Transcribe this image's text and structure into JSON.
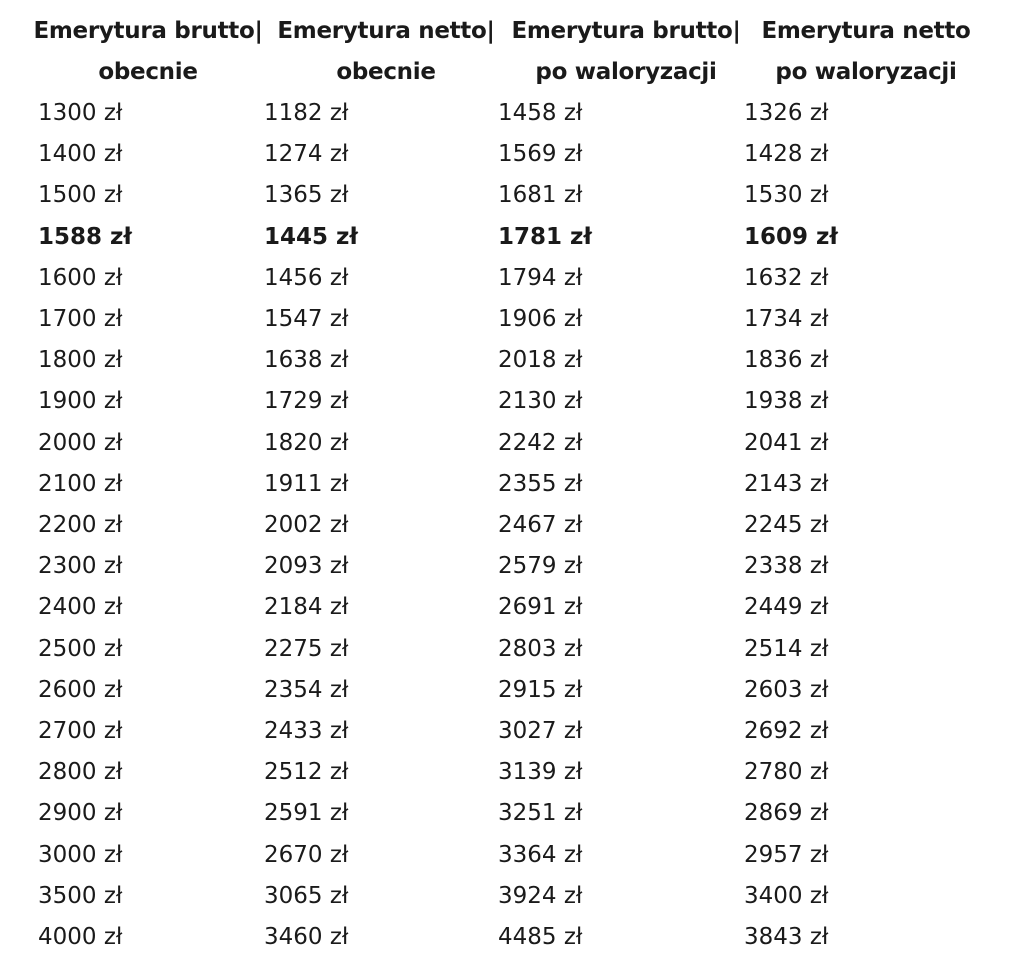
{
  "table": {
    "headers": [
      [
        "Emerytura brutto|",
        "obecnie"
      ],
      [
        "Emerytura netto|",
        "obecnie"
      ],
      [
        "Emerytura brutto|",
        "po waloryzacji"
      ],
      [
        "Emerytura netto",
        "po waloryzacji"
      ]
    ],
    "rows": [
      [
        "1300 zł",
        "1182 zł",
        "1458 zł",
        "1326 zł"
      ],
      [
        "1400 zł",
        "1274 zł",
        "1569 zł",
        "1428 zł"
      ],
      [
        "1500 zł",
        "1365 zł",
        "1681 zł",
        "1530 zł"
      ],
      [
        "1588 zł",
        "1445 zł",
        "1781 zł",
        "1609 zł"
      ],
      [
        "1600 zł",
        "1456 zł",
        "1794 zł",
        "1632 zł"
      ],
      [
        "1700 zł",
        "1547 zł",
        "1906 zł",
        "1734 zł"
      ],
      [
        "1800 zł",
        "1638 zł",
        "2018 zł",
        "1836 zł"
      ],
      [
        "1900 zł",
        "1729 zł",
        "2130 zł",
        "1938 zł"
      ],
      [
        "2000 zł",
        "1820 zł",
        "2242 zł",
        "2041 zł"
      ],
      [
        "2100 zł",
        "1911 zł",
        "2355 zł",
        "2143 zł"
      ],
      [
        "2200 zł",
        "2002 zł",
        "2467 zł",
        "2245 zł"
      ],
      [
        "2300 zł",
        "2093 zł",
        "2579 zł",
        "2338 zł"
      ],
      [
        "2400 zł",
        "2184 zł",
        "2691 zł",
        "2449 zł"
      ],
      [
        "2500 zł",
        "2275 zł",
        "2803 zł",
        "2514 zł"
      ],
      [
        "2600 zł",
        "2354 zł",
        "2915 zł",
        "2603 zł"
      ],
      [
        "2700 zł",
        "2433 zł",
        "3027 zł",
        "2692 zł"
      ],
      [
        "2800 zł",
        "2512 zł",
        "3139 zł",
        "2780 zł"
      ],
      [
        "2900 zł",
        "2591 zł",
        "3251 zł",
        "2869 zł"
      ],
      [
        "3000 zł",
        "2670 zł",
        "3364 zł",
        "2957 zł"
      ],
      [
        "3500 zł",
        "3065 zł",
        "3924 zł",
        "3400 zł"
      ],
      [
        "4000 zł",
        "3460 zł",
        "4485 zł",
        "3843 zł"
      ]
    ],
    "bold_rows": [
      3
    ]
  }
}
